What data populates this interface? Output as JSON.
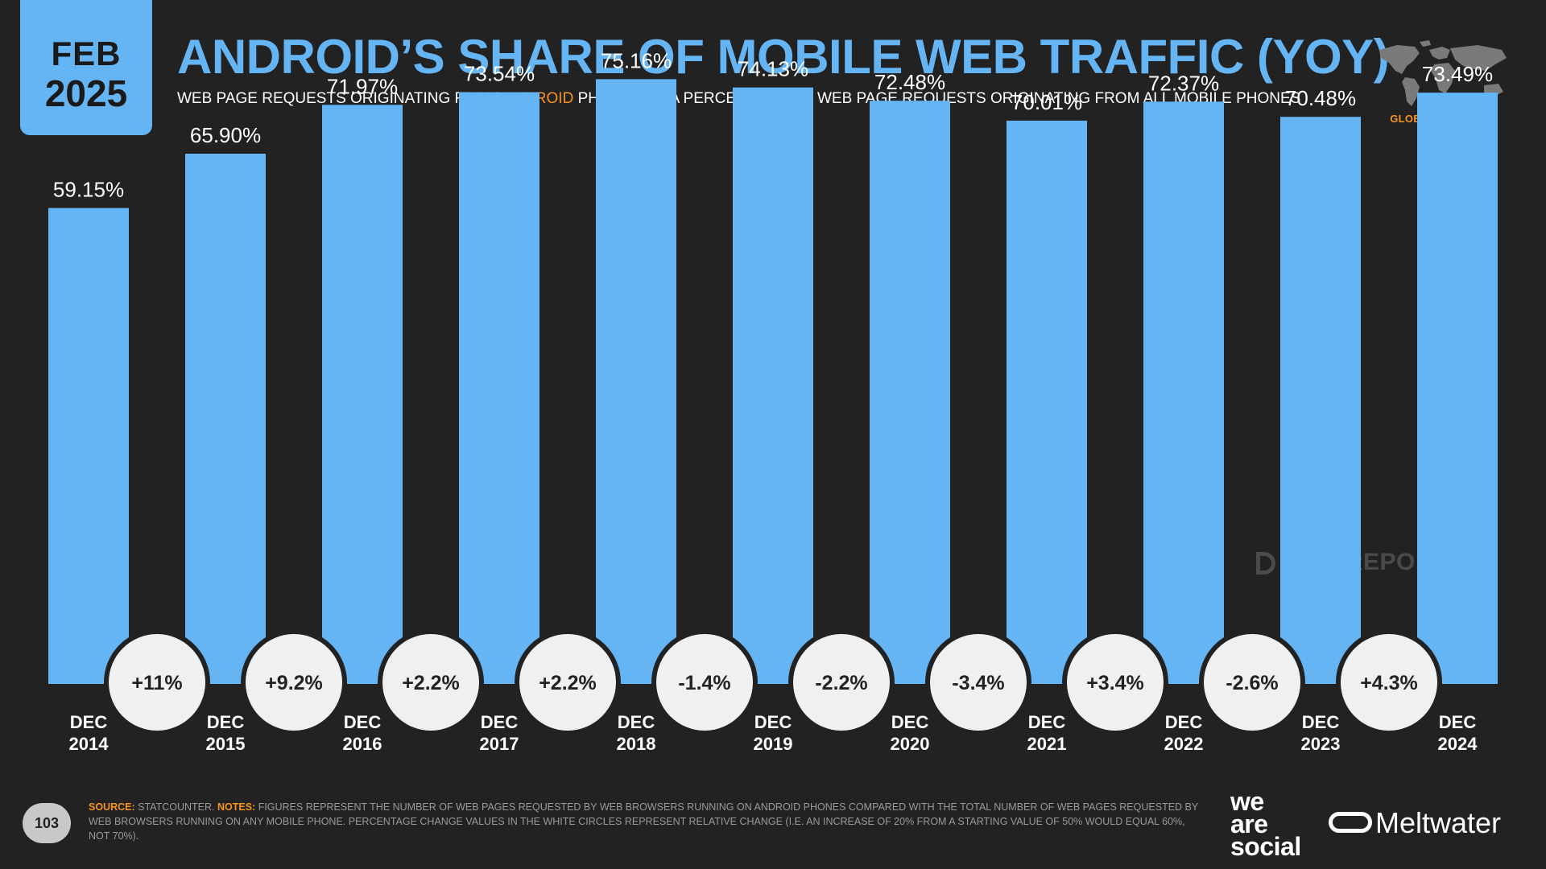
{
  "badge": {
    "month": "FEB",
    "year": "2025"
  },
  "header": {
    "title": "ANDROID’S SHARE OF MOBILE WEB TRAFFIC (YOY)",
    "subtitle_pre": "WEB PAGE REQUESTS ORIGINATING FROM ",
    "subtitle_highlight": "ANDROID",
    "subtitle_post": " PHONES AS A PERCENTAGE OF WEB PAGE REQUESTS ORIGINATING FROM ALL MOBILE PHONES",
    "section_label": "GLOBAL OVERVIEW"
  },
  "colors": {
    "background": "#222222",
    "bar": "#65b4f4",
    "accent": "#f7941d",
    "circle": "#f0f0f0",
    "text": "#ffffff"
  },
  "chart_data": {
    "type": "bar",
    "categories": [
      [
        "DEC",
        "2014"
      ],
      [
        "DEC",
        "2015"
      ],
      [
        "DEC",
        "2016"
      ],
      [
        "DEC",
        "2017"
      ],
      [
        "DEC",
        "2018"
      ],
      [
        "DEC",
        "2019"
      ],
      [
        "DEC",
        "2020"
      ],
      [
        "DEC",
        "2021"
      ],
      [
        "DEC",
        "2022"
      ],
      [
        "DEC",
        "2023"
      ],
      [
        "DEC",
        "2024"
      ]
    ],
    "values": [
      59.15,
      65.9,
      71.97,
      73.54,
      75.16,
      74.13,
      72.48,
      70.01,
      72.37,
      70.48,
      73.49
    ],
    "value_labels": [
      "59.15%",
      "65.90%",
      "71.97%",
      "73.54%",
      "75.16%",
      "74.13%",
      "72.48%",
      "70.01%",
      "72.37%",
      "70.48%",
      "73.49%"
    ],
    "changes": [
      "+11%",
      "+9.2%",
      "+2.2%",
      "+2.2%",
      "-1.4%",
      "-2.2%",
      "-3.4%",
      "+3.4%",
      "-2.6%",
      "+4.3%"
    ],
    "ylim": [
      0,
      80
    ],
    "grid": false,
    "legend": "none"
  },
  "watermark": "DATAREPORTAL",
  "footer": {
    "page_number": "103",
    "source_label": "SOURCE:",
    "source_text": " STATCOUNTER. ",
    "notes_label": "NOTES:",
    "notes_text": " FIGURES REPRESENT THE NUMBER OF WEB PAGES REQUESTED BY WEB BROWSERS RUNNING ON ANDROID PHONES COMPARED WITH THE TOTAL NUMBER OF WEB PAGES REQUESTED BY WEB BROWSERS RUNNING ON ANY MOBILE PHONE. PERCENTAGE CHANGE VALUES IN THE WHITE CIRCLES REPRESENT RELATIVE CHANGE (I.E. AN INCREASE OF 20% FROM A STARTING VALUE OF 50% WOULD EQUAL 60%, NOT 70%).",
    "brand1_line1": "we",
    "brand1_line2": "are",
    "brand1_line3": "social",
    "brand2": "Meltwater"
  }
}
